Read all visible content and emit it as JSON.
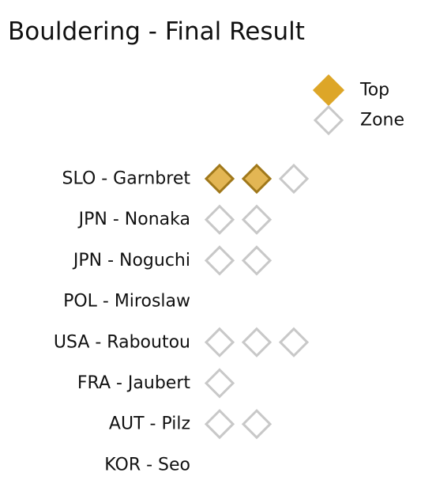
{
  "chart_data": {
    "type": "scatter",
    "title": "Bouldering - Final Result",
    "legend": {
      "placement": "top-right",
      "entries": [
        {
          "key": "top",
          "label": "Top",
          "marker": "filled-diamond"
        },
        {
          "key": "zone",
          "label": "Zone",
          "marker": "hollow-diamond"
        }
      ]
    },
    "athletes": [
      {
        "label": "SLO - Garnbret",
        "results": [
          "top",
          "top",
          "zone"
        ]
      },
      {
        "label": "JPN - Nonaka",
        "results": [
          "zone",
          "zone"
        ]
      },
      {
        "label": "JPN - Noguchi",
        "results": [
          "zone",
          "zone"
        ]
      },
      {
        "label": "POL - Miroslaw",
        "results": []
      },
      {
        "label": "USA - Raboutou",
        "results": [
          "zone",
          "zone",
          "zone"
        ]
      },
      {
        "label": "FRA - Jaubert",
        "results": [
          "zone"
        ]
      },
      {
        "label": "AUT - Pilz",
        "results": [
          "zone",
          "zone"
        ]
      },
      {
        "label": "KOR - Seo",
        "results": []
      }
    ]
  },
  "colors": {
    "legend_top_fill": "#DDA628",
    "legend_top_stroke": "#DDA628",
    "top_fill": "#E3B654",
    "top_stroke": "#A0781A",
    "zone_fill": "#FFFFFF",
    "zone_stroke": "#C8C8C8",
    "text": "#111111"
  }
}
